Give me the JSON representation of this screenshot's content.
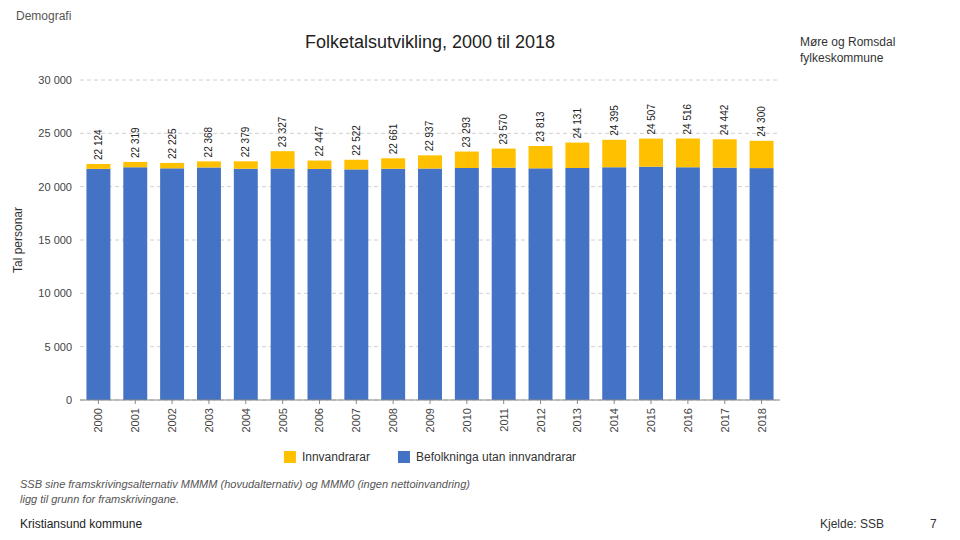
{
  "chart_data": {
    "type": "bar",
    "stacked": true,
    "title": "Folketalsutvikling, 2000 til 2018",
    "y_label": "Tal personar",
    "categories": [
      "2000",
      "2001",
      "2002",
      "2003",
      "2004",
      "2005",
      "2006",
      "2007",
      "2008",
      "2009",
      "2010",
      "2011",
      "2012",
      "2013",
      "2014",
      "2015",
      "2016",
      "2017",
      "2018"
    ],
    "series": [
      {
        "name": "Befolkninga utan innvandrarar",
        "color": "#4472C4",
        "values": [
          21670,
          21820,
          21720,
          21800,
          21680,
          21700,
          21660,
          21620,
          21680,
          21700,
          21750,
          21780,
          21720,
          21750,
          21820,
          21870,
          21820,
          21780,
          21740
        ]
      },
      {
        "name": "Innvandrarar",
        "color": "#FFC000",
        "values": [
          454,
          499,
          505,
          568,
          699,
          1627,
          787,
          902,
          981,
          1237,
          1543,
          1790,
          2093,
          2381,
          2575,
          2637,
          2696,
          2662,
          2560
        ]
      }
    ],
    "totals": [
      22124,
      22319,
      22225,
      22368,
      22379,
      23327,
      22447,
      22522,
      22661,
      22937,
      23293,
      23570,
      23813,
      24131,
      24395,
      24507,
      24516,
      24442,
      24300
    ],
    "total_labels": [
      "22 124",
      "22 319",
      "22 225",
      "22 368",
      "22 379",
      "23 327",
      "22 447",
      "22 522",
      "22 661",
      "22 937",
      "23 293",
      "23 570",
      "23 813",
      "24 131",
      "24 395",
      "24 507",
      "24 516",
      "24 442",
      "24 300"
    ],
    "ylim": [
      0,
      30000
    ],
    "yticks": [
      0,
      {
        "value": 5000,
        "label": "5 000"
      },
      {
        "value": 10000,
        "label": "10 000"
      },
      {
        "value": 15000,
        "label": "15 000"
      },
      {
        "value": 20000,
        "label": "20 000"
      },
      {
        "value": 25000,
        "label": "25 000"
      },
      {
        "value": 30000,
        "label": "30 000"
      }
    ],
    "grid": true,
    "legend": "bottom"
  },
  "header": "Demografi",
  "footer": [
    "SSB sine framskrivingsalternativ MMMM (hovudalternativ) og MMM0 (ingen nettoinvandring)",
    "ligg til grunn for framskrivingane."
  ],
  "source": "Kjelde: SSB",
  "page_number": "7",
  "logos": [
    "Møre og Romsdal",
    "fylkeskommune",
    "Kristiansund kommune"
  ]
}
